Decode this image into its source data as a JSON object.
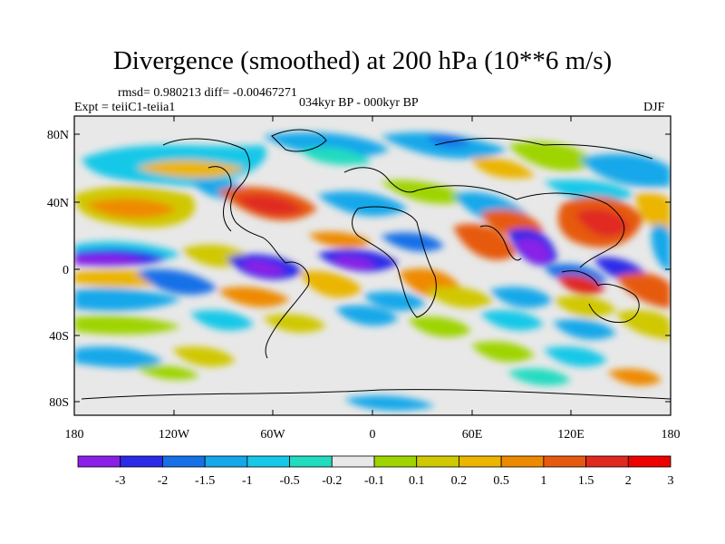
{
  "title": "Divergence (smoothed) at 200 hPa (10**6 m/s)",
  "stats_line": "rmsd= 0.980213 diff= -0.00467271",
  "experiment_line": "Expt = teiiC1-teiia1",
  "period_line": "034kyr BP - 000kyr BP",
  "season": "DJF",
  "lat_ticks": [
    "80N",
    "40N",
    "0",
    "40S",
    "80S"
  ],
  "lon_ticks": [
    "180",
    "120W",
    "60W",
    "0",
    "60E",
    "120E",
    "180"
  ],
  "colorbar": {
    "colors": [
      "#8a20e8",
      "#2a2ae8",
      "#1670e8",
      "#14a8ea",
      "#18c8e8",
      "#22dcc0",
      "#e8e8e8",
      "#9ed400",
      "#d0c800",
      "#ebb500",
      "#ee8a00",
      "#e65a10",
      "#e02a20",
      "#ee0000"
    ],
    "labels": [
      "-3",
      "-2",
      "-1.5",
      "-1",
      "-0.5",
      "-0.2",
      "-0.1",
      "0.1",
      "0.2",
      "0.5",
      "1",
      "1.5",
      "2",
      "3"
    ]
  }
}
